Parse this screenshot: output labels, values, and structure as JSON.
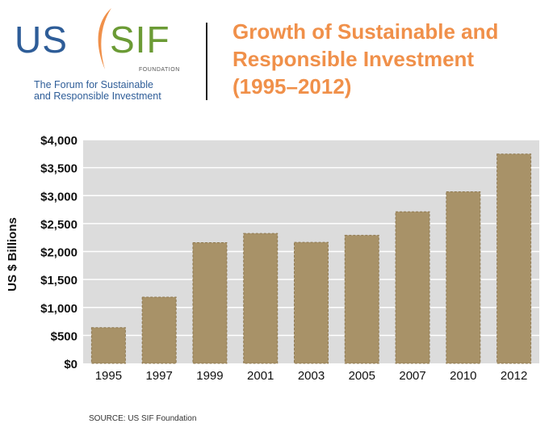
{
  "logo": {
    "us": "US",
    "sif": "SIF",
    "foundation": "FOUNDATION",
    "tagline_line1": "The Forum for Sustainable",
    "tagline_line2": "and Responsible Investment"
  },
  "title_lines": [
    "Growth of Sustainable and",
    "Responsible Investment",
    "(1995–2012)"
  ],
  "source": "SOURCE: US SIF Foundation",
  "colors": {
    "title": "#f0904a",
    "bar": "#a89268",
    "plot_bg": "#dcdcdc",
    "us_blue": "#2e5d98",
    "sif_green": "#6b9b35",
    "swoosh": "#f0904a"
  },
  "chart_data": {
    "type": "bar",
    "categories": [
      "1995",
      "1997",
      "1999",
      "2001",
      "2003",
      "2005",
      "2007",
      "2010",
      "2012"
    ],
    "values": [
      639,
      1185,
      2159,
      2323,
      2164,
      2290,
      2711,
      3069,
      3744
    ],
    "ylabel": "US $ Billions",
    "ylim": [
      0,
      4000
    ],
    "yticks": [
      0,
      500,
      1000,
      1500,
      2000,
      2500,
      3000,
      3500,
      4000
    ],
    "ytick_labels": [
      "$0",
      "$500",
      "$1,000",
      "$1,500",
      "$2,000",
      "$2,500",
      "$3,000",
      "$3,500",
      "$4,000"
    ],
    "grid": true
  }
}
